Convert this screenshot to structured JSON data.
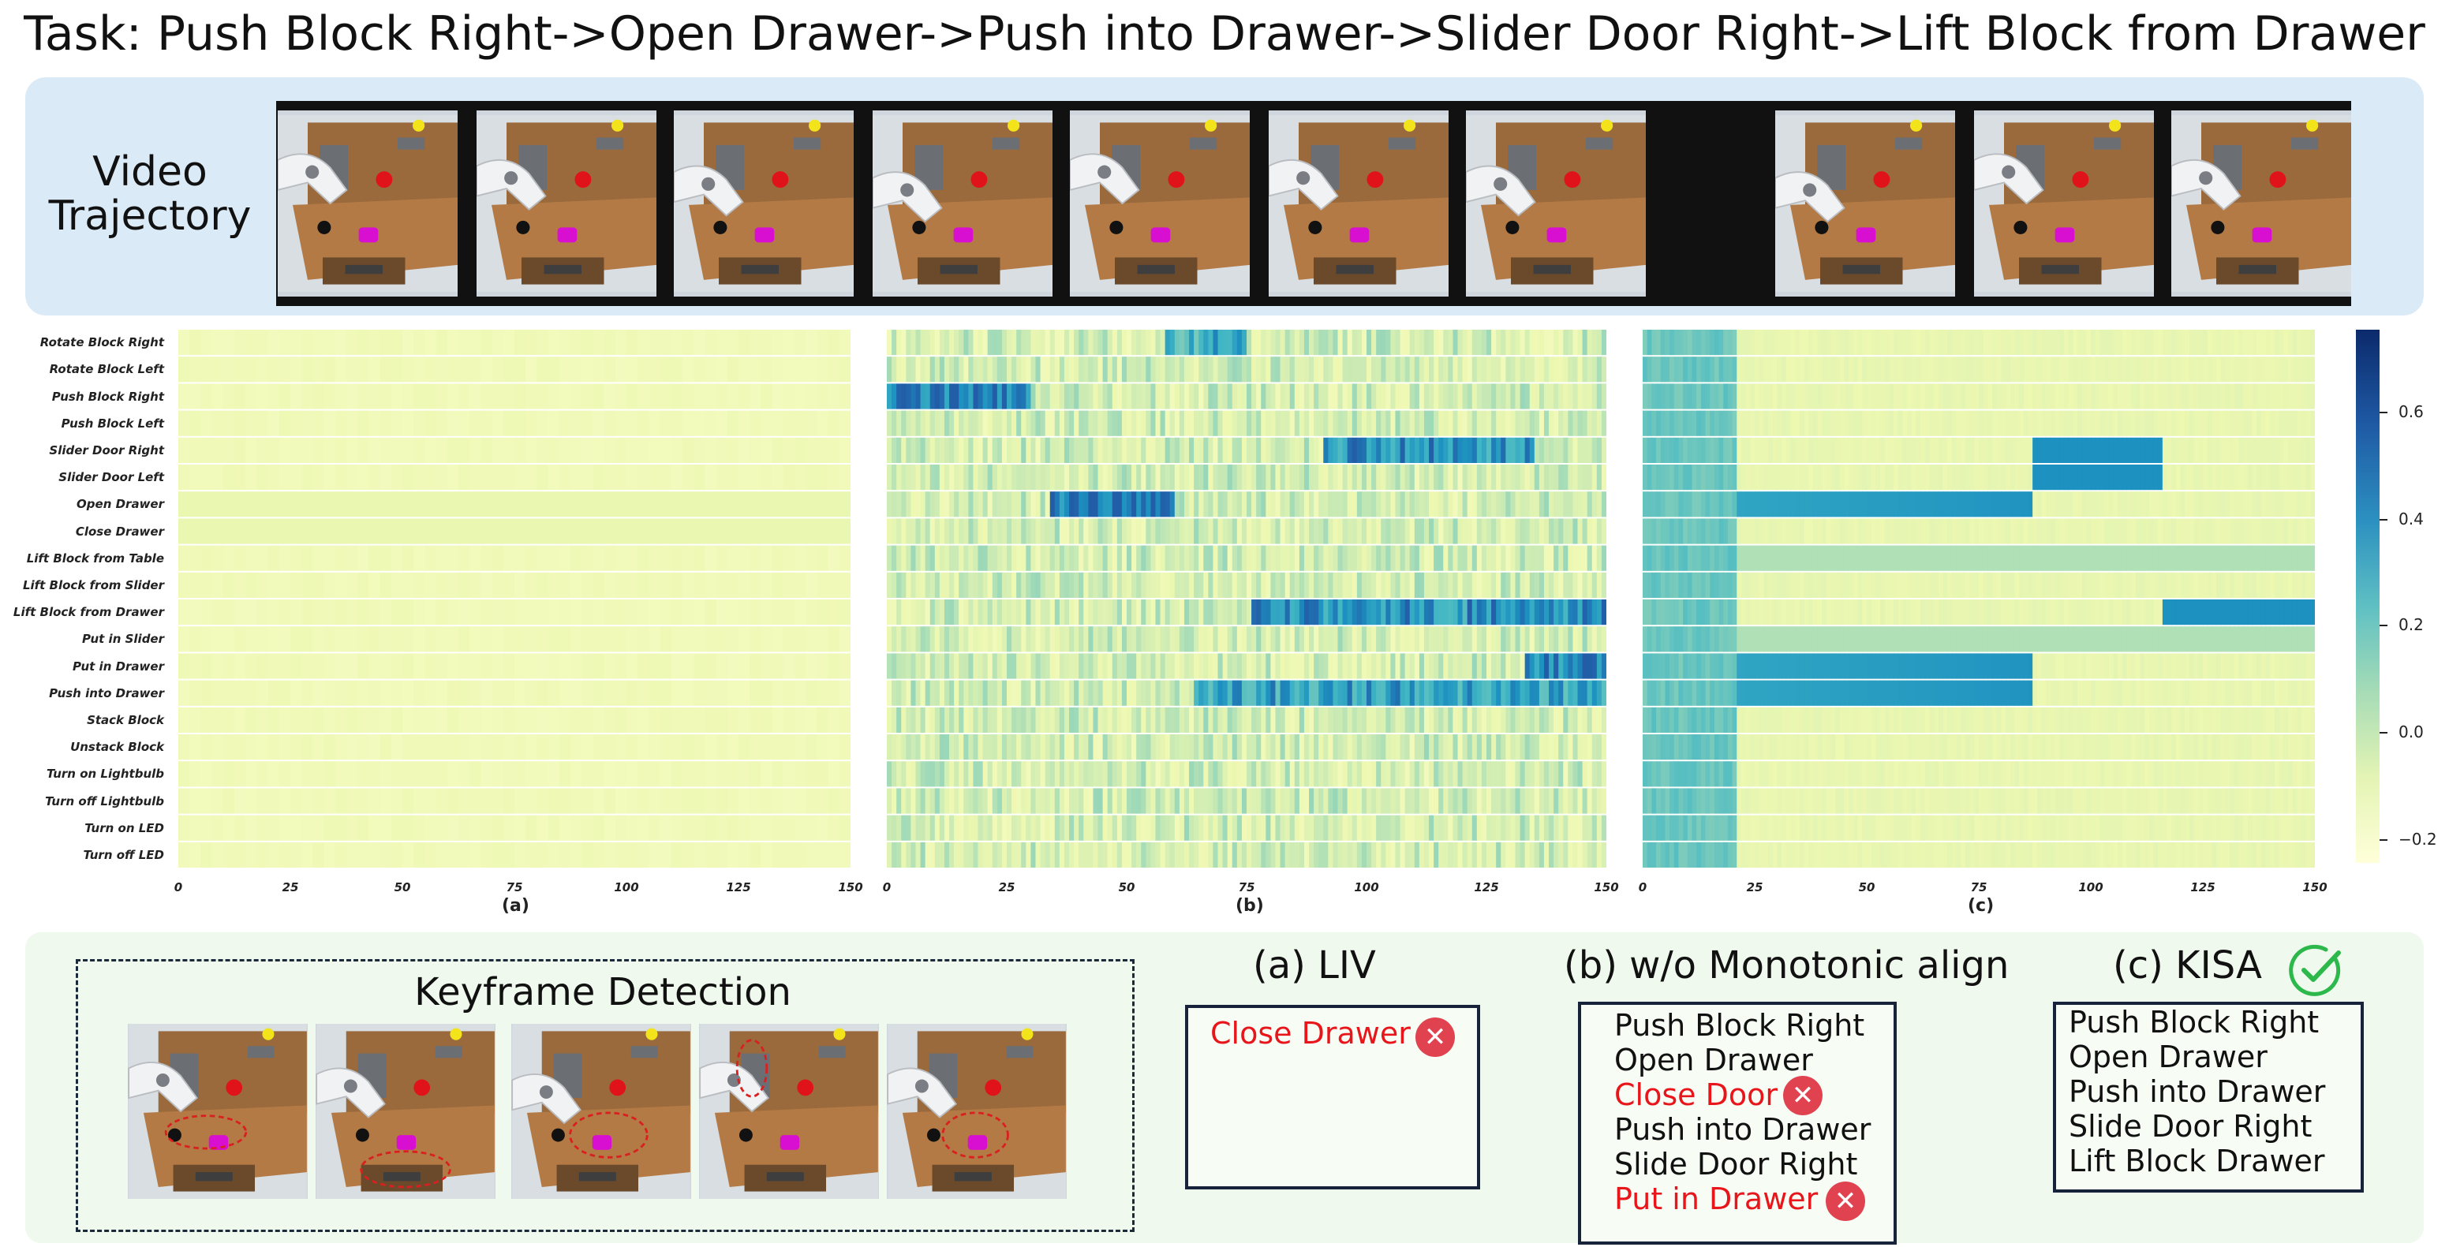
{
  "title": "Task: Push Block Right->Open Drawer->Push into Drawer->Slider Door Right->Lift Block from Drawer",
  "video_label_line1": "Video",
  "video_label_line2": "Trajectory",
  "ellipsis": "...",
  "row_labels": [
    "Rotate Block Right",
    "Rotate Block Left",
    "Push Block Right",
    "Push Block Left",
    "Slider Door Right",
    "Slider Door Left",
    "Open Drawer",
    "Close Drawer",
    "Lift Block from Table",
    "Lift Block from Slider",
    "Lift Block from Drawer",
    "Put in Slider",
    "Put in Drawer",
    "Push into Drawer",
    "Stack Block",
    "Unstack Block",
    "Turn on Lightbulb",
    "Turn off Lightbulb",
    "Turn on LED",
    "Turn off LED"
  ],
  "x_ticks": [
    "0",
    "25",
    "50",
    "75",
    "100",
    "125",
    "150"
  ],
  "panel_captions": [
    "(a)",
    "(b)",
    "(c)"
  ],
  "colorbar_ticks": [
    "0.6",
    "0.4",
    "0.2",
    "0.0",
    "−0.2"
  ],
  "colors": {
    "video_panel": "#dbeaf7",
    "bottom_panel": "#f0f9ee",
    "bad_text": "#e8151b",
    "x_badge": "#e04250",
    "check": "#2db84b"
  },
  "keyframe_title": "Keyframe Detection",
  "liv": {
    "title": "(a) LIV",
    "items": [
      {
        "text": "Close Drawer",
        "bad": true
      }
    ]
  },
  "wo_mono": {
    "title": "(b) w/o Monotonic align",
    "items": [
      {
        "text": "Push Block Right",
        "bad": false
      },
      {
        "text": "Open Drawer",
        "bad": false
      },
      {
        "text": "Close Door",
        "bad": true
      },
      {
        "text": "Push into Drawer",
        "bad": false
      },
      {
        "text": "Slide Door Right",
        "bad": false
      },
      {
        "text": "Put in Drawer",
        "bad": true
      }
    ]
  },
  "kisa": {
    "title": "(c) KISA",
    "items": [
      {
        "text": "Push Block Right"
      },
      {
        "text": "Open Drawer"
      },
      {
        "text": "Push into Drawer"
      },
      {
        "text": "Slide Door Right"
      },
      {
        "text": "Lift Block Drawer"
      }
    ]
  },
  "icons": {
    "wrong": "x-mark-icon",
    "correct": "check-circle-icon"
  }
}
